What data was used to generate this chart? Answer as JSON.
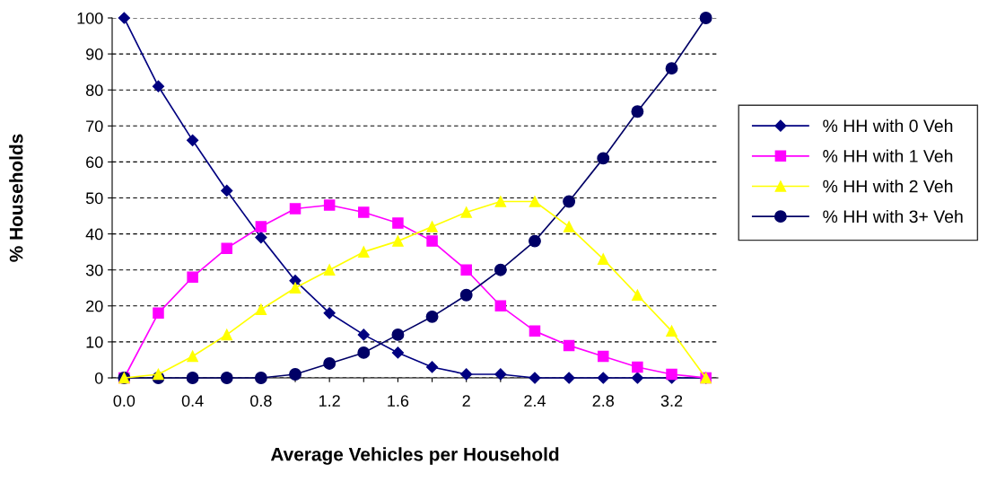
{
  "chart_data": {
    "type": "line",
    "xlabel": "Average Vehicles per Household",
    "ylabel": "% Households",
    "categories": [
      "0.0",
      null,
      "0.4",
      null,
      "0.8",
      null,
      "1.2",
      null,
      "1.6",
      null,
      "2",
      null,
      "2.4",
      null,
      "2.8",
      null,
      "3.2",
      null
    ],
    "series": [
      {
        "name": "% HH with 0 Veh",
        "color": "#000080",
        "marker": "diamond",
        "values": [
          100,
          81,
          66,
          52,
          39,
          27,
          18,
          12,
          7,
          3,
          1,
          1,
          0,
          0,
          0,
          0,
          0,
          0
        ]
      },
      {
        "name": "% HH with 1 Veh",
        "color": "#ff00ff",
        "marker": "square",
        "values": [
          0,
          18,
          28,
          36,
          42,
          47,
          48,
          46,
          43,
          38,
          30,
          20,
          13,
          9,
          6,
          3,
          1,
          0
        ]
      },
      {
        "name": "% HH with 2 Veh",
        "color": "#ffff00",
        "marker": "triangle",
        "values": [
          0,
          1,
          6,
          12,
          19,
          25,
          30,
          35,
          38,
          42,
          46,
          49,
          49,
          42,
          33,
          23,
          13,
          0
        ]
      },
      {
        "name": "% HH with 3+ Veh",
        "color": "#000066",
        "marker": "circle",
        "values": [
          0,
          0,
          0,
          0,
          0,
          1,
          4,
          7,
          12,
          17,
          23,
          30,
          38,
          49,
          61,
          74,
          86,
          100
        ]
      }
    ],
    "ylim": [
      0,
      100
    ],
    "yticks": [
      0,
      10,
      20,
      30,
      40,
      50,
      60,
      70,
      80,
      90,
      100
    ],
    "grid": "y",
    "legend": "right",
    "line_style": "solid"
  }
}
